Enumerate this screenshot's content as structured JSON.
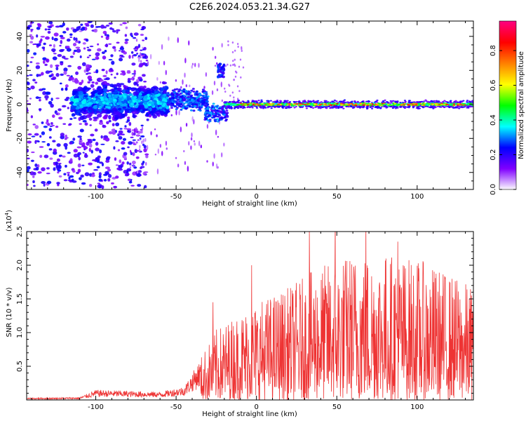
{
  "page": {
    "title": "C2E6.2024.053.21.34.G27"
  },
  "chart_data": [
    {
      "type": "heatmap",
      "xlabel": "Height of straight line (km)",
      "ylabel": "Frequency (Hz)",
      "xlim": [
        -143,
        135
      ],
      "ylim": [
        -50,
        49
      ],
      "xticks": [
        -100,
        -50,
        0,
        50,
        100
      ],
      "yticks": [
        -40,
        -20,
        0,
        20,
        40
      ],
      "colorbar": {
        "label": "Normalized spectral amplitude",
        "ticks": [
          "0.0",
          "0.2",
          "0.4",
          "0.6",
          "0.8"
        ],
        "range": [
          0,
          0.97
        ],
        "colormap": [
          "#ffffff",
          "#8000ff",
          "#0000ff",
          "#00ffff",
          "#00ff00",
          "#ffff00",
          "#ff8000",
          "#ff0000",
          "#ff0080"
        ]
      },
      "features": [
        {
          "x_range": [
            -143,
            -110
          ],
          "desc": "scattered noise",
          "freq_spread": 49
        },
        {
          "x_range": [
            -110,
            -55
          ],
          "center_freq": 2,
          "spread": 12
        },
        {
          "x_range": [
            -55,
            -30
          ],
          "center_freq": 3,
          "spread": 6
        },
        {
          "x_range": [
            -30,
            -20
          ],
          "center_freq": -6,
          "spread": 5
        },
        {
          "x_range": [
            -25,
            -22
          ],
          "center_freq": 20,
          "spread": 4
        },
        {
          "x_range": [
            -20,
            135
          ],
          "center_freq": 0,
          "spread": 3
        }
      ]
    },
    {
      "type": "line",
      "xlabel": "Height of straight line (km)",
      "ylabel": "SNR (10 * v/v)",
      "yscale_label": "(x10",
      "yscale_exp": "4",
      "yscale_close": ")",
      "xlim": [
        -143,
        135
      ],
      "ylim": [
        0,
        2.5
      ],
      "xticks": [
        -100,
        -50,
        0,
        50,
        100
      ],
      "yticks": [
        0.5,
        1.0,
        1.5,
        2.0,
        2.5
      ],
      "ytick_labels": [
        "0.5",
        "1.0",
        "1.5",
        "2.0",
        "2.5"
      ],
      "color": "#ee3333",
      "envelope": {
        "x": [
          -143,
          -110,
          -100,
          -60,
          -45,
          -35,
          -25,
          -10,
          0,
          20,
          40,
          60,
          80,
          100,
          120,
          135
        ],
        "y": [
          0.03,
          0.04,
          0.15,
          0.12,
          0.2,
          0.6,
          1.0,
          1.25,
          1.4,
          1.6,
          1.9,
          2.1,
          2.1,
          2.0,
          1.8,
          1.6
        ]
      },
      "peaks": [
        {
          "x": 49,
          "y": 2.5
        },
        {
          "x": 68,
          "y": 2.5
        },
        {
          "x": 33,
          "y": 2.3
        },
        {
          "x": 88,
          "y": 2.15
        },
        {
          "x": -3,
          "y": 1.8
        },
        {
          "x": -27,
          "y": 1.25
        }
      ]
    }
  ]
}
